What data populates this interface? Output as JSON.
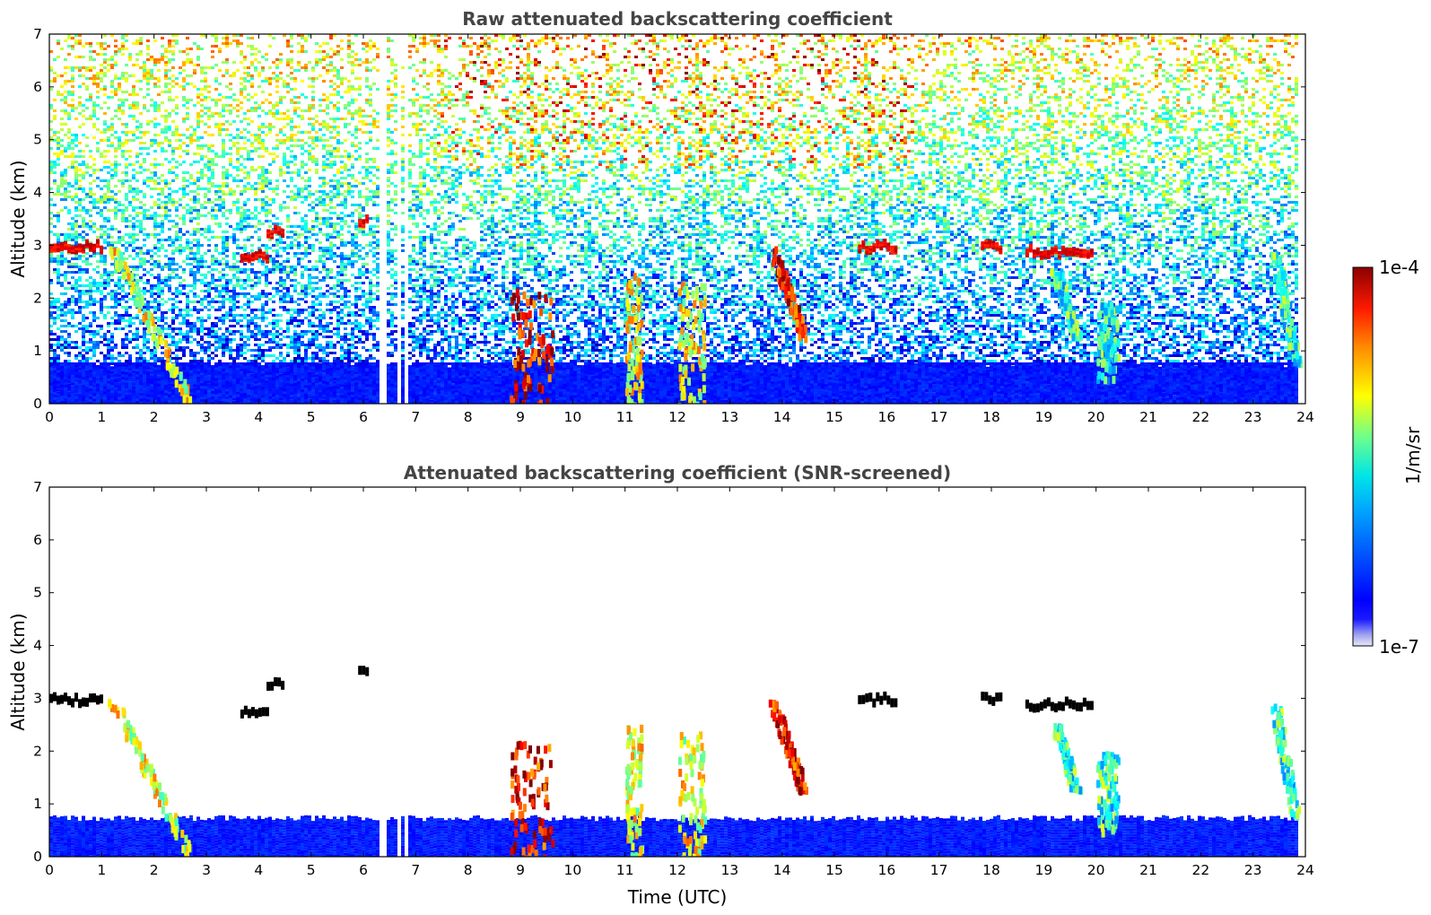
{
  "chart_data": [
    {
      "type": "heatmap",
      "title": "Raw attenuated backscattering coefficient",
      "xlabel": "",
      "ylabel": "Altitude (km)",
      "xlim": [
        0,
        24
      ],
      "ylim": [
        0,
        7
      ],
      "xticks": [
        "0",
        "1",
        "2",
        "3",
        "4",
        "5",
        "6",
        "7",
        "8",
        "9",
        "10",
        "11",
        "12",
        "13",
        "14",
        "15",
        "16",
        "17",
        "18",
        "19",
        "20",
        "21",
        "22",
        "23",
        "24"
      ],
      "yticks": [
        "0",
        "1",
        "2",
        "3",
        "4",
        "5",
        "6",
        "7"
      ],
      "grid": false,
      "data_gaps_utc": [
        [
          6.3,
          6.42
        ],
        [
          6.62,
          6.68
        ],
        [
          6.78,
          6.85
        ]
      ],
      "features": [
        {
          "kind": "boundary-layer",
          "t_start": 0,
          "t_end": 23.8,
          "alt_top_km": 0.75,
          "level": "low"
        },
        {
          "kind": "cloud",
          "t_center": 0.5,
          "alt_km": 3.0,
          "width_h": 1.0,
          "level": "high"
        },
        {
          "kind": "fall-streak",
          "t_start": 1.2,
          "t_end": 2.7,
          "alt_top_km": 3.0,
          "alt_bottom_km": 0.0,
          "level": "medium-high"
        },
        {
          "kind": "cloud",
          "t_center": 3.9,
          "alt_km": 2.8,
          "width_h": 0.5,
          "level": "high"
        },
        {
          "kind": "cloud",
          "t_center": 4.3,
          "alt_km": 3.3,
          "width_h": 0.3,
          "level": "high"
        },
        {
          "kind": "cloud",
          "t_center": 6.0,
          "alt_km": 3.5,
          "width_h": 0.2,
          "level": "high"
        },
        {
          "kind": "precipitation",
          "t_start": 8.8,
          "t_end": 9.6,
          "alt_top_km": 2.2,
          "alt_bottom_km": 0.0,
          "level": "high"
        },
        {
          "kind": "precipitation",
          "t_start": 11.0,
          "t_end": 11.3,
          "alt_top_km": 2.5,
          "alt_bottom_km": 0.0,
          "level": "medium-high"
        },
        {
          "kind": "precipitation",
          "t_start": 12.0,
          "t_end": 12.5,
          "alt_top_km": 2.4,
          "alt_bottom_km": 0.0,
          "level": "medium-high"
        },
        {
          "kind": "fall-streak",
          "t_start": 13.8,
          "t_end": 14.4,
          "alt_top_km": 3.0,
          "alt_bottom_km": 1.3,
          "level": "high"
        },
        {
          "kind": "cloud",
          "t_center": 15.8,
          "alt_km": 3.0,
          "width_h": 0.7,
          "level": "high"
        },
        {
          "kind": "cloud",
          "t_center": 18.0,
          "alt_km": 3.0,
          "width_h": 0.4,
          "level": "high"
        },
        {
          "kind": "cloud",
          "t_center": 19.3,
          "alt_km": 2.9,
          "width_h": 1.3,
          "level": "high"
        },
        {
          "kind": "fall-streak",
          "t_start": 19.2,
          "t_end": 19.6,
          "alt_top_km": 2.6,
          "alt_bottom_km": 1.3,
          "level": "medium"
        },
        {
          "kind": "precipitation",
          "t_start": 20.0,
          "t_end": 20.4,
          "alt_top_km": 2.0,
          "alt_bottom_km": 0.5,
          "level": "medium"
        },
        {
          "kind": "fall-streak",
          "t_start": 23.4,
          "t_end": 23.8,
          "alt_top_km": 2.9,
          "alt_bottom_km": 0.8,
          "level": "medium"
        }
      ],
      "noise": "speckle increasing with altitude above 3 km"
    },
    {
      "type": "heatmap",
      "title": "Attenuated backscattering coefficient (SNR-screened)",
      "xlabel": "Time (UTC)",
      "ylabel": "Altitude (km)",
      "xlim": [
        0,
        24
      ],
      "ylim": [
        0,
        7
      ],
      "xticks": [
        "0",
        "1",
        "2",
        "3",
        "4",
        "5",
        "6",
        "7",
        "8",
        "9",
        "10",
        "11",
        "12",
        "13",
        "14",
        "15",
        "16",
        "17",
        "18",
        "19",
        "20",
        "21",
        "22",
        "23",
        "24"
      ],
      "yticks": [
        "0",
        "1",
        "2",
        "3",
        "4",
        "5",
        "6",
        "7"
      ],
      "grid": false,
      "note": "same features as the raw panel with low-SNR pixels removed; strongest returns shown in black"
    }
  ],
  "colorbar": {
    "label": "1/m/sr",
    "max_label": "1e-4",
    "min_label": "1e-7",
    "scale": "log",
    "colormap": "jet",
    "over_color": "#000000"
  },
  "colors": {
    "title": "#444444",
    "axes": "#000000",
    "background": "#ffffff"
  }
}
